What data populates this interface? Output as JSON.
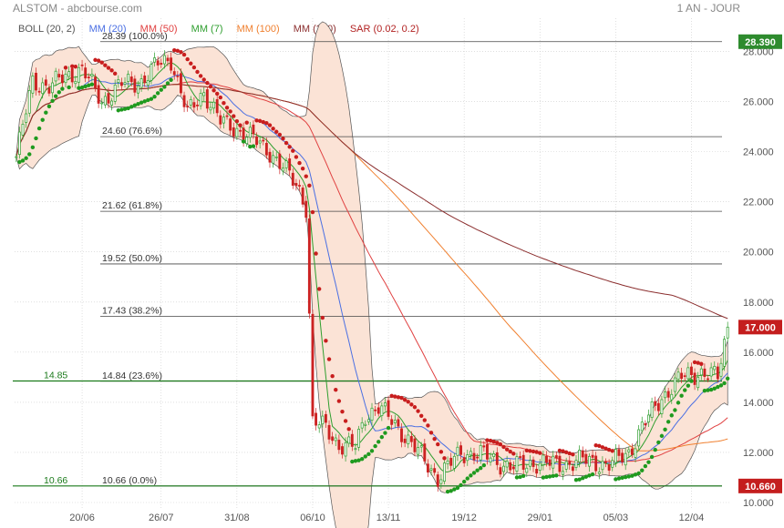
{
  "header": {
    "title": "ALSTOM - abcbourse.com",
    "period": "1 AN - JOUR"
  },
  "indicators": [
    {
      "label": "BOLL (20, 2)",
      "color": "#555555"
    },
    {
      "label": "MM (20)",
      "color": "#4a6fe3"
    },
    {
      "label": "MM (50)",
      "color": "#e04040"
    },
    {
      "label": "MM (7)",
      "color": "#2e9e2e"
    },
    {
      "label": "MM (100)",
      "color": "#f08030"
    },
    {
      "label": "MM (200)",
      "color": "#8b2e2e"
    },
    {
      "label": "SAR (0.02, 0.2)",
      "color": "#b22222"
    }
  ],
  "colors": {
    "up_candle": "#2e9e2e",
    "down_candle": "#cc2222",
    "band_fill": "#fbe3d6",
    "grid": "#cccccc",
    "fib_line": "#444444",
    "support_line": "#1a7a1a",
    "last_price_bg": "#c41e1e",
    "high_price_bg": "#2e8b2e"
  },
  "chart_data": {
    "type": "candlestick",
    "title": "ALSTOM",
    "xlabel": "",
    "ylabel": "",
    "ylim": [
      10,
      28.6
    ],
    "x_ticks": [
      "20/06",
      "26/07",
      "31/08",
      "06/10",
      "13/11",
      "19/12",
      "29/01",
      "05/03",
      "12/04"
    ],
    "y_ticks": [
      "10.000",
      "12.000",
      "14.000",
      "16.000",
      "18.000",
      "20.000",
      "22.000",
      "24.000",
      "26.000",
      "28.000"
    ],
    "fibonacci": [
      {
        "label": "28.39  (100.0%)",
        "value": 28.39
      },
      {
        "label": "24.60  (76.6%)",
        "value": 24.6
      },
      {
        "label": "21.62  (61.8%)",
        "value": 21.62
      },
      {
        "label": "19.52  (50.0%)",
        "value": 19.52
      },
      {
        "label": "17.43  (38.2%)",
        "value": 17.43
      },
      {
        "label": "14.84  (23.6%)",
        "value": 14.84
      },
      {
        "label": "10.66  (0.0%)",
        "value": 10.66
      }
    ],
    "support_lines": [
      {
        "label": "14.85",
        "value": 14.85
      },
      {
        "label": "10.66",
        "value": 10.66
      }
    ],
    "price_tags": [
      {
        "label": "28.390",
        "value": 28.39,
        "kind": "high"
      },
      {
        "label": "17.000",
        "value": 17.0,
        "kind": "last"
      },
      {
        "label": "10.660",
        "value": 10.66,
        "kind": "low"
      }
    ],
    "anchors": [
      [
        0,
        23.8
      ],
      [
        5,
        26.8
      ],
      [
        10,
        26.6
      ],
      [
        15,
        27.0
      ],
      [
        20,
        27.3
      ],
      [
        26,
        26.0
      ],
      [
        32,
        26.7
      ],
      [
        38,
        26.8
      ],
      [
        43,
        27.5
      ],
      [
        47,
        27.7
      ],
      [
        52,
        25.5
      ],
      [
        57,
        26.4
      ],
      [
        62,
        25.2
      ],
      [
        67,
        24.9
      ],
      [
        72,
        24.5
      ],
      [
        77,
        24.0
      ],
      [
        82,
        23.2
      ],
      [
        86,
        22.5
      ],
      [
        88,
        21.8
      ],
      [
        90,
        13.2
      ],
      [
        94,
        13.0
      ],
      [
        98,
        12.3
      ],
      [
        103,
        12.2
      ],
      [
        106,
        13.5
      ],
      [
        110,
        13.8
      ],
      [
        116,
        13.0
      ],
      [
        122,
        12.0
      ],
      [
        128,
        11.0
      ],
      [
        135,
        12.0
      ],
      [
        142,
        11.9
      ],
      [
        150,
        11.4
      ],
      [
        158,
        11.6
      ],
      [
        165,
        11.5
      ],
      [
        172,
        11.7
      ],
      [
        180,
        11.5
      ],
      [
        186,
        12.0
      ],
      [
        190,
        13.0
      ],
      [
        196,
        14.2
      ],
      [
        202,
        15.0
      ],
      [
        208,
        15.2
      ],
      [
        213,
        15.0
      ],
      [
        216,
        17.0
      ]
    ],
    "x_tick_index": [
      20,
      44,
      67,
      90,
      113,
      136,
      159,
      182,
      205
    ],
    "n_points": 217
  }
}
